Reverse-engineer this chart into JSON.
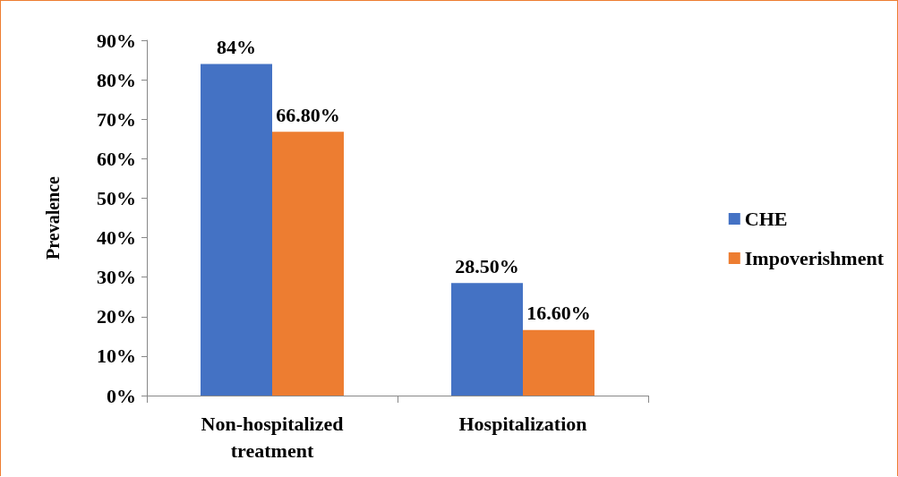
{
  "chart_data": {
    "type": "bar",
    "ylabel": "Prevalence",
    "categories": [
      "Non-hospitalized\ntreatment",
      "Hospitalization"
    ],
    "series": [
      {
        "name": "CHE",
        "color": "#4472c4",
        "values": [
          84,
          28.5
        ],
        "value_labels": [
          "84%",
          "28.50%"
        ]
      },
      {
        "name": "Impoverishment",
        "color": "#ed7d31",
        "values": [
          66.8,
          16.6
        ],
        "value_labels": [
          "66.80%",
          "16.60%"
        ]
      }
    ],
    "ylim": [
      0,
      90
    ],
    "yticks": [
      {
        "value": 0,
        "label": "0%"
      },
      {
        "value": 10,
        "label": "10%"
      },
      {
        "value": 20,
        "label": "20%"
      },
      {
        "value": 30,
        "label": "30%"
      },
      {
        "value": 40,
        "label": "40%"
      },
      {
        "value": 50,
        "label": "50%"
      },
      {
        "value": 60,
        "label": "60%"
      },
      {
        "value": 70,
        "label": "70%"
      },
      {
        "value": 80,
        "label": "80%"
      },
      {
        "value": 90,
        "label": "90%"
      }
    ],
    "grid": false,
    "legend": "right"
  }
}
